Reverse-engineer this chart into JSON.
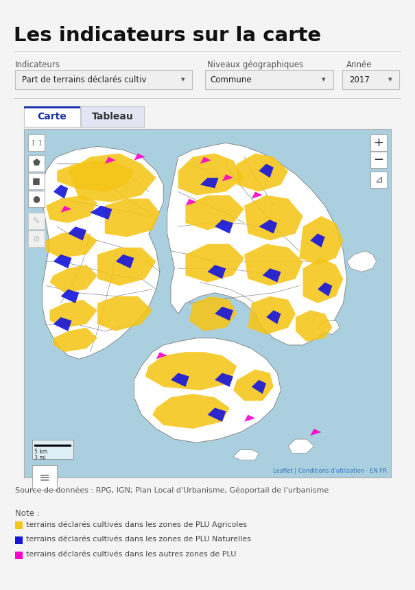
{
  "title": "Les indicateurs sur la carte",
  "bg_color": "#f4f4f4",
  "white": "#ffffff",
  "label_indicateurs": "Indicateurs",
  "label_niveaux": "Niveaux géographiques",
  "label_annee": "Année",
  "dropdown_indicateur": "Part de terrains déclarés cultiv",
  "dropdown_niveaux": "Commune",
  "dropdown_annee": "2017",
  "tab_carte": "Carte",
  "tab_tableau": "Tableau",
  "tab_carte_color": "#1a2faa",
  "tab_tableau_bg": "#e4e4f5",
  "source_text": "Source de données : RPG, IGN; Plan Local d'Urbanisme, Géoportail de l'urbanisme",
  "note_title": "Note :",
  "legend_items": [
    {
      "color": "#f5c518",
      "text": "terrains déclarés cultivés dans les zones de PLU Agricoles"
    },
    {
      "color": "#1515dc",
      "text": "terrains déclarés cultivés dans les zones de PLU Naturelles"
    },
    {
      "color": "#ff00cc",
      "text": "terrains déclarés cultivés dans les autres zones de PLU"
    }
  ],
  "map_bg": "#aacfdf",
  "map_land_color": "#ffffff",
  "map_border_color": "#888888",
  "map_ag_color": "#f5c518",
  "map_nat_color": "#1515dc",
  "map_other_color": "#ff00cc",
  "leaflet_text": "Leaflet | Conditions d'utilisation · EN FR"
}
